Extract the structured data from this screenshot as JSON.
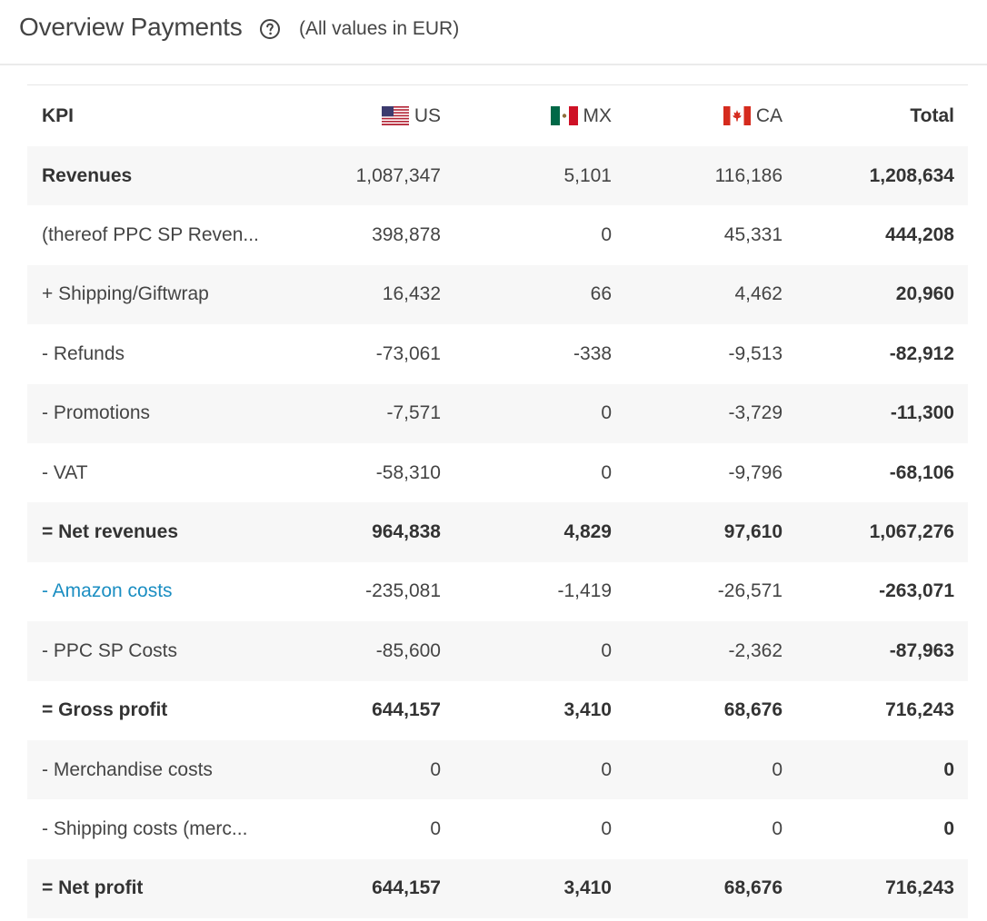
{
  "header": {
    "title": "Overview Payments",
    "subtitle": "(All values in EUR)",
    "help_icon": "question-circle-icon"
  },
  "table": {
    "columns": {
      "kpi": "KPI",
      "us": "US",
      "mx": "MX",
      "ca": "CA",
      "total": "Total"
    },
    "flags": {
      "us": "us-flag-icon",
      "mx": "mx-flag-icon",
      "ca": "ca-flag-icon"
    },
    "rows": [
      {
        "kpi": "Revenues",
        "us": "1,087,347",
        "mx": "5,101",
        "ca": "116,186",
        "total": "1,208,634"
      },
      {
        "kpi": "(thereof PPC SP Reven...",
        "us": "398,878",
        "mx": "0",
        "ca": "45,331",
        "total": "444,208"
      },
      {
        "kpi": "+ Shipping/Giftwrap",
        "us": "16,432",
        "mx": "66",
        "ca": "4,462",
        "total": "20,960"
      },
      {
        "kpi": "- Refunds",
        "us": "-73,061",
        "mx": "-338",
        "ca": "-9,513",
        "total": "-82,912"
      },
      {
        "kpi": "- Promotions",
        "us": "-7,571",
        "mx": "0",
        "ca": "-3,729",
        "total": "-11,300"
      },
      {
        "kpi": "- VAT",
        "us": "-58,310",
        "mx": "0",
        "ca": "-9,796",
        "total": "-68,106"
      },
      {
        "kpi": "= Net revenues",
        "us": "964,838",
        "mx": "4,829",
        "ca": "97,610",
        "total": "1,067,276"
      },
      {
        "kpi": "- Amazon costs",
        "us": "-235,081",
        "mx": "-1,419",
        "ca": "-26,571",
        "total": "-263,071"
      },
      {
        "kpi": "- PPC SP Costs",
        "us": "-85,600",
        "mx": "0",
        "ca": "-2,362",
        "total": "-87,963"
      },
      {
        "kpi": "= Gross profit",
        "us": "644,157",
        "mx": "3,410",
        "ca": "68,676",
        "total": "716,243"
      },
      {
        "kpi": "- Merchandise costs",
        "us": "0",
        "mx": "0",
        "ca": "0",
        "total": "0"
      },
      {
        "kpi": "- Shipping costs (merc...",
        "us": "0",
        "mx": "0",
        "ca": "0",
        "total": "0"
      },
      {
        "kpi": "= Net profit",
        "us": "644,157",
        "mx": "3,410",
        "ca": "68,676",
        "total": "716,243"
      }
    ]
  },
  "colors": {
    "link": "#1b8ec2",
    "shaded_row": "#f7f7f7"
  }
}
